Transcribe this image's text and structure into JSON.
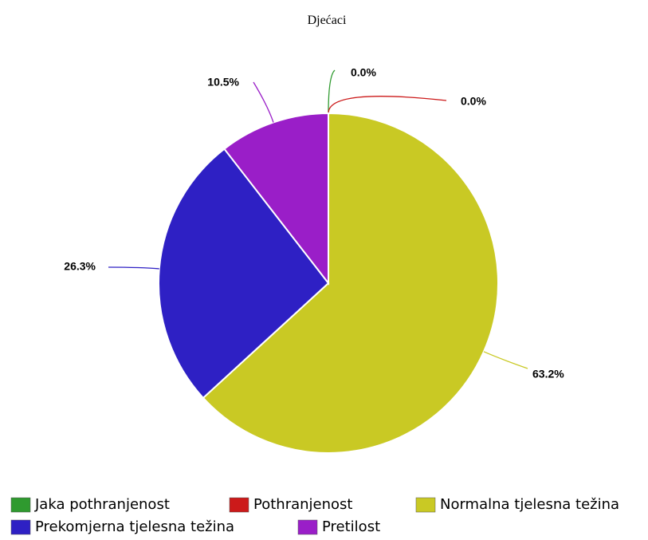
{
  "chart_data": {
    "type": "pie",
    "title": "Djećaci",
    "categories": [
      "Jaka pothranjenost",
      "Pothranjenost",
      "Normalna tjelesna težina",
      "Prekomjerna tjelesna težina",
      "Pretilost"
    ],
    "values": [
      0.0,
      0.0,
      63.2,
      26.3,
      10.5
    ],
    "value_labels": [
      "0.0%",
      "0.0%",
      "63.2%",
      "26.3%",
      "10.5%"
    ],
    "colors": [
      "#2f9a2f",
      "#cc1a1a",
      "#c9c924",
      "#2e20c4",
      "#9a1ec8"
    ],
    "legend": "bottom"
  }
}
